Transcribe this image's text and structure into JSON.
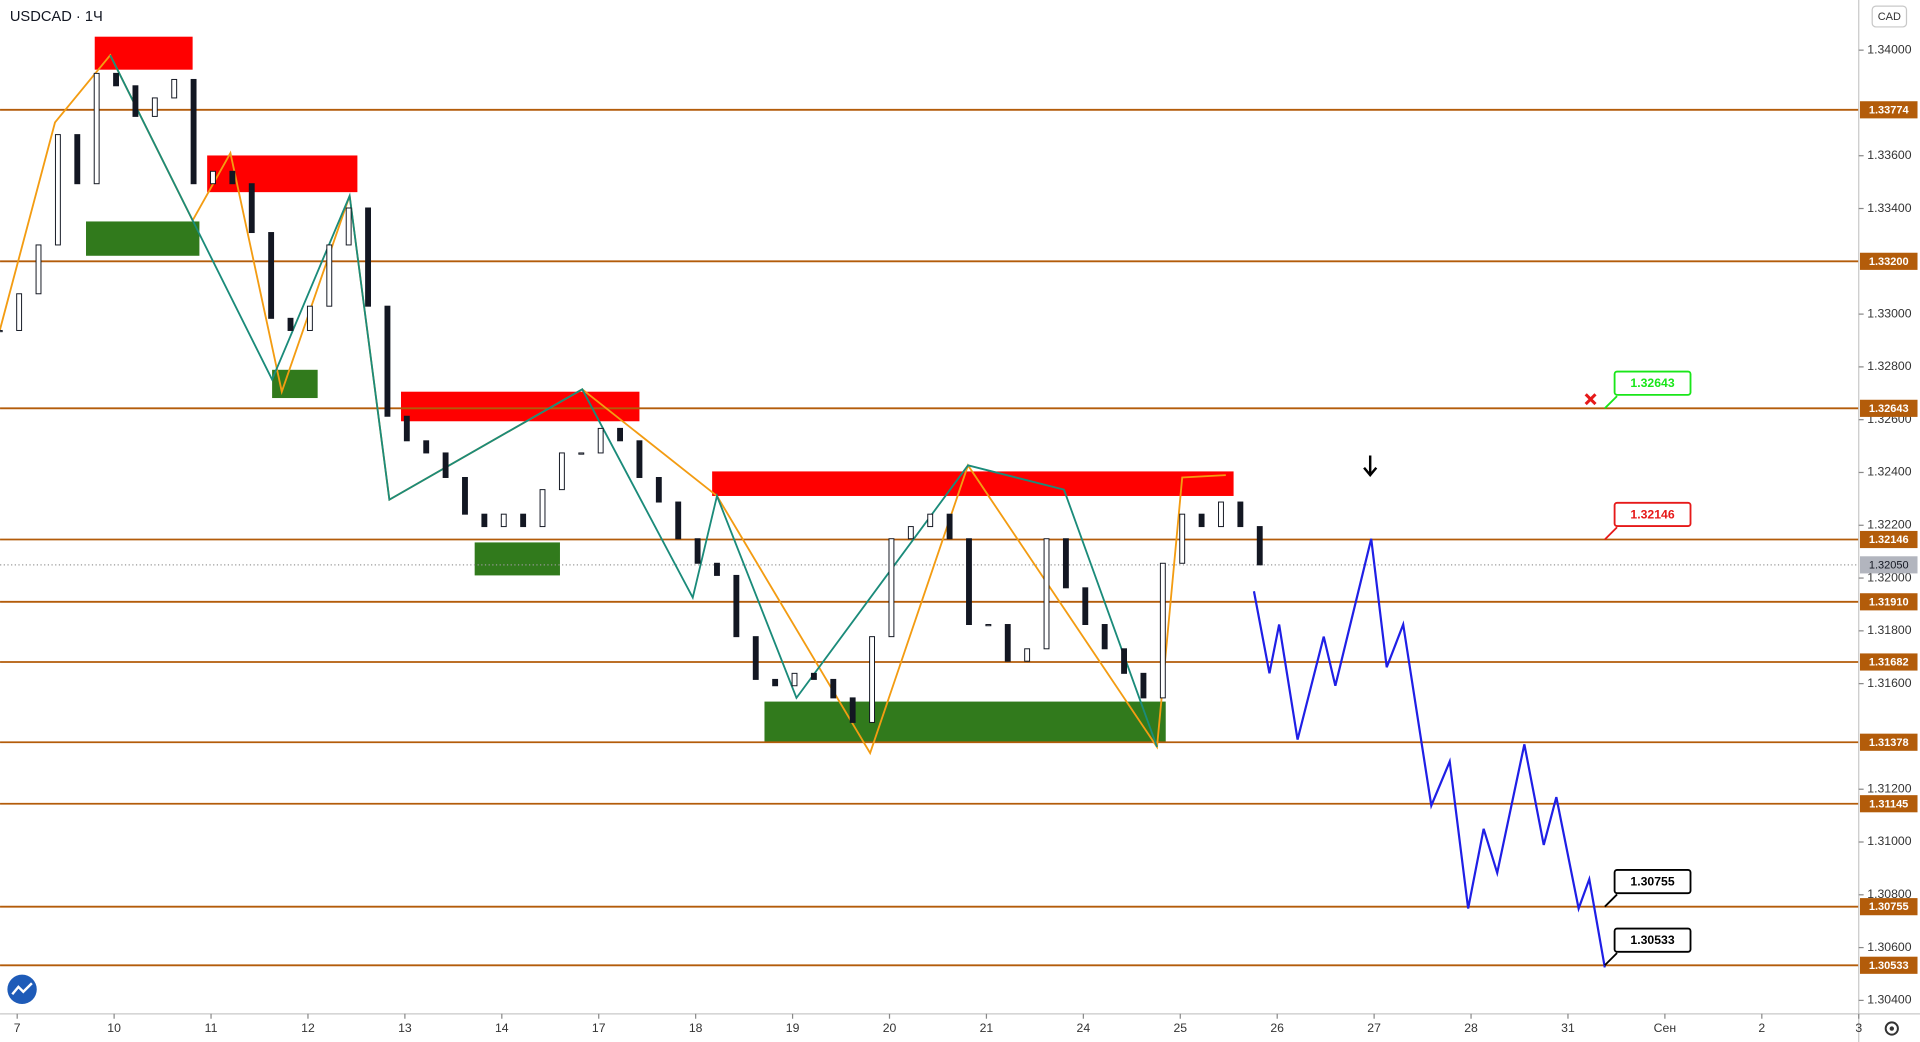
{
  "chart_data": {
    "type": "candlestick",
    "symbol_label": "USDCAD · 1Ч",
    "currency": "CAD",
    "xlim": [
      -0.177,
      19.0
    ],
    "ylim": [
      1.30349,
      1.3419
    ],
    "xticks": [
      {
        "value": 0,
        "label": "7"
      },
      {
        "value": 1,
        "label": "10"
      },
      {
        "value": 2,
        "label": "11"
      },
      {
        "value": 3,
        "label": "12"
      },
      {
        "value": 4,
        "label": "13"
      },
      {
        "value": 5,
        "label": "14"
      },
      {
        "value": 6,
        "label": "17"
      },
      {
        "value": 7,
        "label": "18"
      },
      {
        "value": 8,
        "label": "19"
      },
      {
        "value": 9,
        "label": "20"
      },
      {
        "value": 10,
        "label": "21"
      },
      {
        "value": 11,
        "label": "24"
      },
      {
        "value": 12,
        "label": "25"
      },
      {
        "value": 13,
        "label": "26"
      },
      {
        "value": 14,
        "label": "27"
      },
      {
        "value": 15,
        "label": "28"
      },
      {
        "value": 16,
        "label": "31"
      },
      {
        "value": 17,
        "label": "Сен"
      },
      {
        "value": 18,
        "label": "2"
      },
      {
        "value": 19,
        "label": "3"
      }
    ],
    "yticks": [
      {
        "value": 1.34,
        "label": "1.34000"
      },
      {
        "value": 1.336,
        "label": "1.33600"
      },
      {
        "value": 1.334,
        "label": "1.33400"
      },
      {
        "value": 1.33,
        "label": "1.33000"
      },
      {
        "value": 1.328,
        "label": "1.32800"
      },
      {
        "value": 1.326,
        "label": "1.32600"
      },
      {
        "value": 1.324,
        "label": "1.32400"
      },
      {
        "value": 1.322,
        "label": "1.32200"
      },
      {
        "value": 1.32,
        "label": "1.32000"
      },
      {
        "value": 1.318,
        "label": "1.31800"
      },
      {
        "value": 1.316,
        "label": "1.31600"
      },
      {
        "value": 1.312,
        "label": "1.31200"
      },
      {
        "value": 1.31,
        "label": "1.31000"
      },
      {
        "value": 1.308,
        "label": "1.30800"
      },
      {
        "value": 1.306,
        "label": "1.30600"
      },
      {
        "value": 1.304,
        "label": "1.30400"
      }
    ],
    "levels": [
      1.33774,
      {
        "value": 1.332,
        "label": "1.33200"
      },
      1.32643,
      1.32146,
      {
        "value": 1.3191,
        "label": "1.31910"
      },
      1.31682,
      1.31378,
      1.31145,
      1.30755,
      1.30533
    ],
    "level_color": "#b35c0a",
    "current_price": {
      "value": 1.3205,
      "label": "1.32050"
    },
    "candles": {
      "x": [
        -0.18,
        0.02,
        0.22,
        0.42,
        0.62,
        0.82,
        1.02,
        1.22,
        1.42,
        1.62,
        1.82,
        2.02,
        2.22,
        2.42,
        2.62,
        2.82,
        3.02,
        3.22,
        3.42,
        3.62,
        3.82,
        4.02,
        4.22,
        4.42,
        4.62,
        4.82,
        5.02,
        5.22,
        5.42,
        5.62,
        5.82,
        6.02,
        6.22,
        6.42,
        6.62,
        6.82,
        7.02,
        7.22,
        7.42,
        7.62,
        7.82,
        8.02,
        8.22,
        8.42,
        8.62,
        8.82,
        9.02,
        9.22,
        9.42,
        9.62,
        9.82,
        10.02,
        10.22,
        10.42,
        10.62,
        10.82,
        11.02,
        11.22,
        11.42,
        11.62,
        11.82,
        12.02,
        12.22,
        12.42,
        12.62,
        12.82
      ],
      "close": [
        1.32938,
        1.33077,
        1.33262,
        1.3368,
        1.33494,
        1.33912,
        1.33865,
        1.33749,
        1.33819,
        1.33889,
        1.33494,
        1.33541,
        1.33494,
        1.33309,
        1.32984,
        1.32938,
        1.3303,
        1.33262,
        1.33402,
        1.3303,
        1.32613,
        1.3252,
        1.32474,
        1.32381,
        1.32242,
        1.32195,
        1.32242,
        1.32195,
        1.32335,
        1.32474,
        1.32474,
        1.32567,
        1.3252,
        1.32381,
        1.32288,
        1.32149,
        1.32056,
        1.3201,
        1.31778,
        1.31616,
        1.31592,
        1.31639,
        1.31616,
        1.31546,
        1.31453,
        1.31778,
        1.32149,
        1.32195,
        1.32242,
        1.32149,
        1.31824,
        1.31824,
        1.31685,
        1.31732,
        1.32149,
        1.31963,
        1.31824,
        1.31732,
        1.31639,
        1.31546,
        1.32056,
        1.32242,
        1.32195,
        1.32288,
        1.32195,
        1.3205
      ]
    },
    "zones": [
      {
        "color": "#ff0000",
        "x0": 0.8,
        "x1": 1.81,
        "top": 1.34051,
        "bottom": 1.33926
      },
      {
        "color": "#317a1c",
        "x0": 0.71,
        "x1": 1.88,
        "top": 1.33351,
        "bottom": 1.33221
      },
      {
        "color": "#ff0000",
        "x0": 1.96,
        "x1": 3.51,
        "top": 1.33601,
        "bottom": 1.33462
      },
      {
        "color": "#317a1c",
        "x0": 2.63,
        "x1": 3.1,
        "top": 1.32789,
        "bottom": 1.32682
      },
      {
        "color": "#ff0000",
        "x0": 3.96,
        "x1": 6.42,
        "top": 1.32706,
        "bottom": 1.32594
      },
      {
        "color": "#317a1c",
        "x0": 4.72,
        "x1": 5.6,
        "top": 1.32135,
        "bottom": 1.3201
      },
      {
        "color": "#ff0000",
        "x0": 7.17,
        "x1": 12.55,
        "top": 1.32404,
        "bottom": 1.32311
      },
      {
        "color": "#317a1c",
        "x0": 7.71,
        "x1": 11.85,
        "top": 1.31532,
        "bottom": 1.31379
      }
    ],
    "waves": [
      {
        "color": "#f39c12",
        "x": [
          -0.18,
          0.39,
          0.96,
          1.81,
          2.2,
          2.73,
          3.43,
          3.84,
          5.83,
          7.22,
          8.8,
          9.81,
          11.76,
          12.02,
          12.47
        ],
        "prices": [
          1.32938,
          1.33726,
          1.33981,
          1.33355,
          1.3361,
          1.32706,
          1.33448,
          1.32297,
          1.32715,
          1.32311,
          1.31337,
          1.32427,
          1.3136,
          1.32381,
          1.3239
        ]
      },
      {
        "color": "#1b8b7a",
        "x": [
          0.96,
          1.81,
          2.63,
          3.43,
          3.84,
          5.83,
          6.97,
          7.22,
          8.04,
          9.81,
          10.8,
          11.76
        ],
        "prices": [
          1.33981,
          1.33355,
          1.32752,
          1.33448,
          1.32297,
          1.32715,
          1.31926,
          1.32311,
          1.31546,
          1.32427,
          1.32335,
          1.3136
        ]
      }
    ],
    "forecast": {
      "color": "#1f1fe6",
      "x": [
        12.76,
        12.92,
        13.02,
        13.21,
        13.48,
        13.6,
        13.97,
        14.13,
        14.3,
        14.59,
        14.78,
        14.97,
        15.13,
        15.27,
        15.55,
        15.75,
        15.88,
        16.11,
        16.22,
        16.38
      ],
      "prices": [
        1.3195,
        1.31639,
        1.31824,
        1.31388,
        1.31778,
        1.31592,
        1.32149,
        1.31662,
        1.31824,
        1.31138,
        1.31305,
        1.30748,
        1.3105,
        1.30883,
        1.3137,
        1.30989,
        1.3117,
        1.30748,
        1.30859,
        1.30525
      ]
    },
    "callouts": [
      {
        "value": 1.32643,
        "x": 16.38,
        "color": "#19e619"
      },
      {
        "value": 1.32146,
        "x": 16.38,
        "color": "#e61919"
      },
      {
        "value": 1.30755,
        "x": 16.38,
        "color": "#000000"
      },
      {
        "value": 1.30533,
        "x": 16.38,
        "color": "#000000"
      }
    ]
  }
}
